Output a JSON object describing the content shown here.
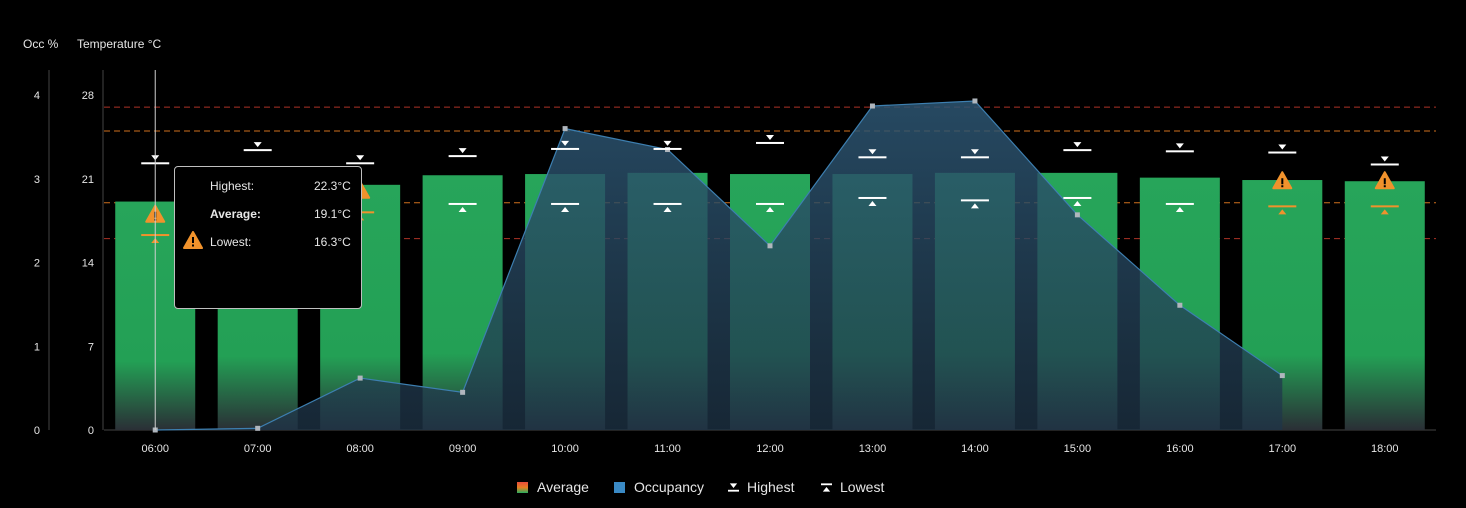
{
  "chart_data": {
    "type": "bar",
    "categories": [
      "06:00",
      "07:00",
      "08:00",
      "09:00",
      "10:00",
      "11:00",
      "12:00",
      "13:00",
      "14:00",
      "15:00",
      "16:00",
      "17:00",
      "18:00"
    ],
    "left_axis": {
      "label": "Occ %",
      "ticks": [
        0,
        1,
        2,
        3,
        4
      ],
      "range": [
        0,
        4.3
      ]
    },
    "right_axis": {
      "label": "Temperature °C",
      "ticks": [
        0,
        7,
        14,
        21,
        28
      ],
      "range": [
        0,
        30.1
      ]
    },
    "series": [
      {
        "name": "Average",
        "axis": "temperature",
        "type": "bar",
        "values": [
          19.1,
          20.5,
          20.5,
          21.3,
          21.4,
          21.5,
          21.4,
          21.4,
          21.5,
          21.5,
          21.1,
          20.9,
          20.8
        ]
      },
      {
        "name": "Occupancy",
        "axis": "occupancy",
        "type": "area",
        "values": [
          0,
          0.02,
          0.62,
          0.45,
          3.6,
          3.35,
          2.2,
          3.87,
          3.93,
          2.57,
          1.49,
          0.65,
          null
        ]
      },
      {
        "name": "Highest",
        "axis": "temperature",
        "type": "marker",
        "values": [
          22.3,
          23.4,
          22.3,
          22.9,
          23.5,
          23.5,
          24.0,
          22.8,
          22.8,
          23.4,
          23.3,
          23.2,
          22.2
        ]
      },
      {
        "name": "Lowest",
        "axis": "temperature",
        "type": "marker",
        "values": [
          16.3,
          18.4,
          18.2,
          18.9,
          18.9,
          18.9,
          18.9,
          19.4,
          19.2,
          19.4,
          18.9,
          18.7,
          18.7
        ]
      }
    ],
    "thresholds": [
      {
        "value": 27.0,
        "color": "#c0392b"
      },
      {
        "value": 25.0,
        "color": "#e67e22"
      },
      {
        "value": 19.0,
        "color": "#e67e22"
      },
      {
        "value": 16.0,
        "color": "#c0392b"
      }
    ],
    "warnings": [
      {
        "category": "06:00",
        "value": 18.0
      },
      {
        "category": "08:00",
        "value": 20.0
      },
      {
        "category": "17:00",
        "value": 20.8
      },
      {
        "category": "18:00",
        "value": 20.8
      }
    ],
    "cursor_category": "06:00",
    "legend_position": "bottom-center",
    "colors": {
      "bar": "#27a55a",
      "area": "#2e5775",
      "area_line": "#3d7fb0",
      "average_swatch_top": "#e74c3c",
      "average_swatch_bottom": "#27ae60",
      "occupancy_swatch": "#3a8ac5",
      "warn": "#f0922c",
      "upper_threshold": "#c0392b",
      "lower_threshold": "#e67e22"
    }
  },
  "tooltip": {
    "highest_label": "Highest:",
    "highest_value": "22.3°C",
    "average_label": "Average:",
    "average_value": "19.1°C",
    "lowest_label": "Lowest:",
    "lowest_value": "16.3°C"
  },
  "legend": {
    "average": "Average",
    "occupancy": "Occupancy",
    "highest": "Highest",
    "lowest": "Lowest"
  }
}
